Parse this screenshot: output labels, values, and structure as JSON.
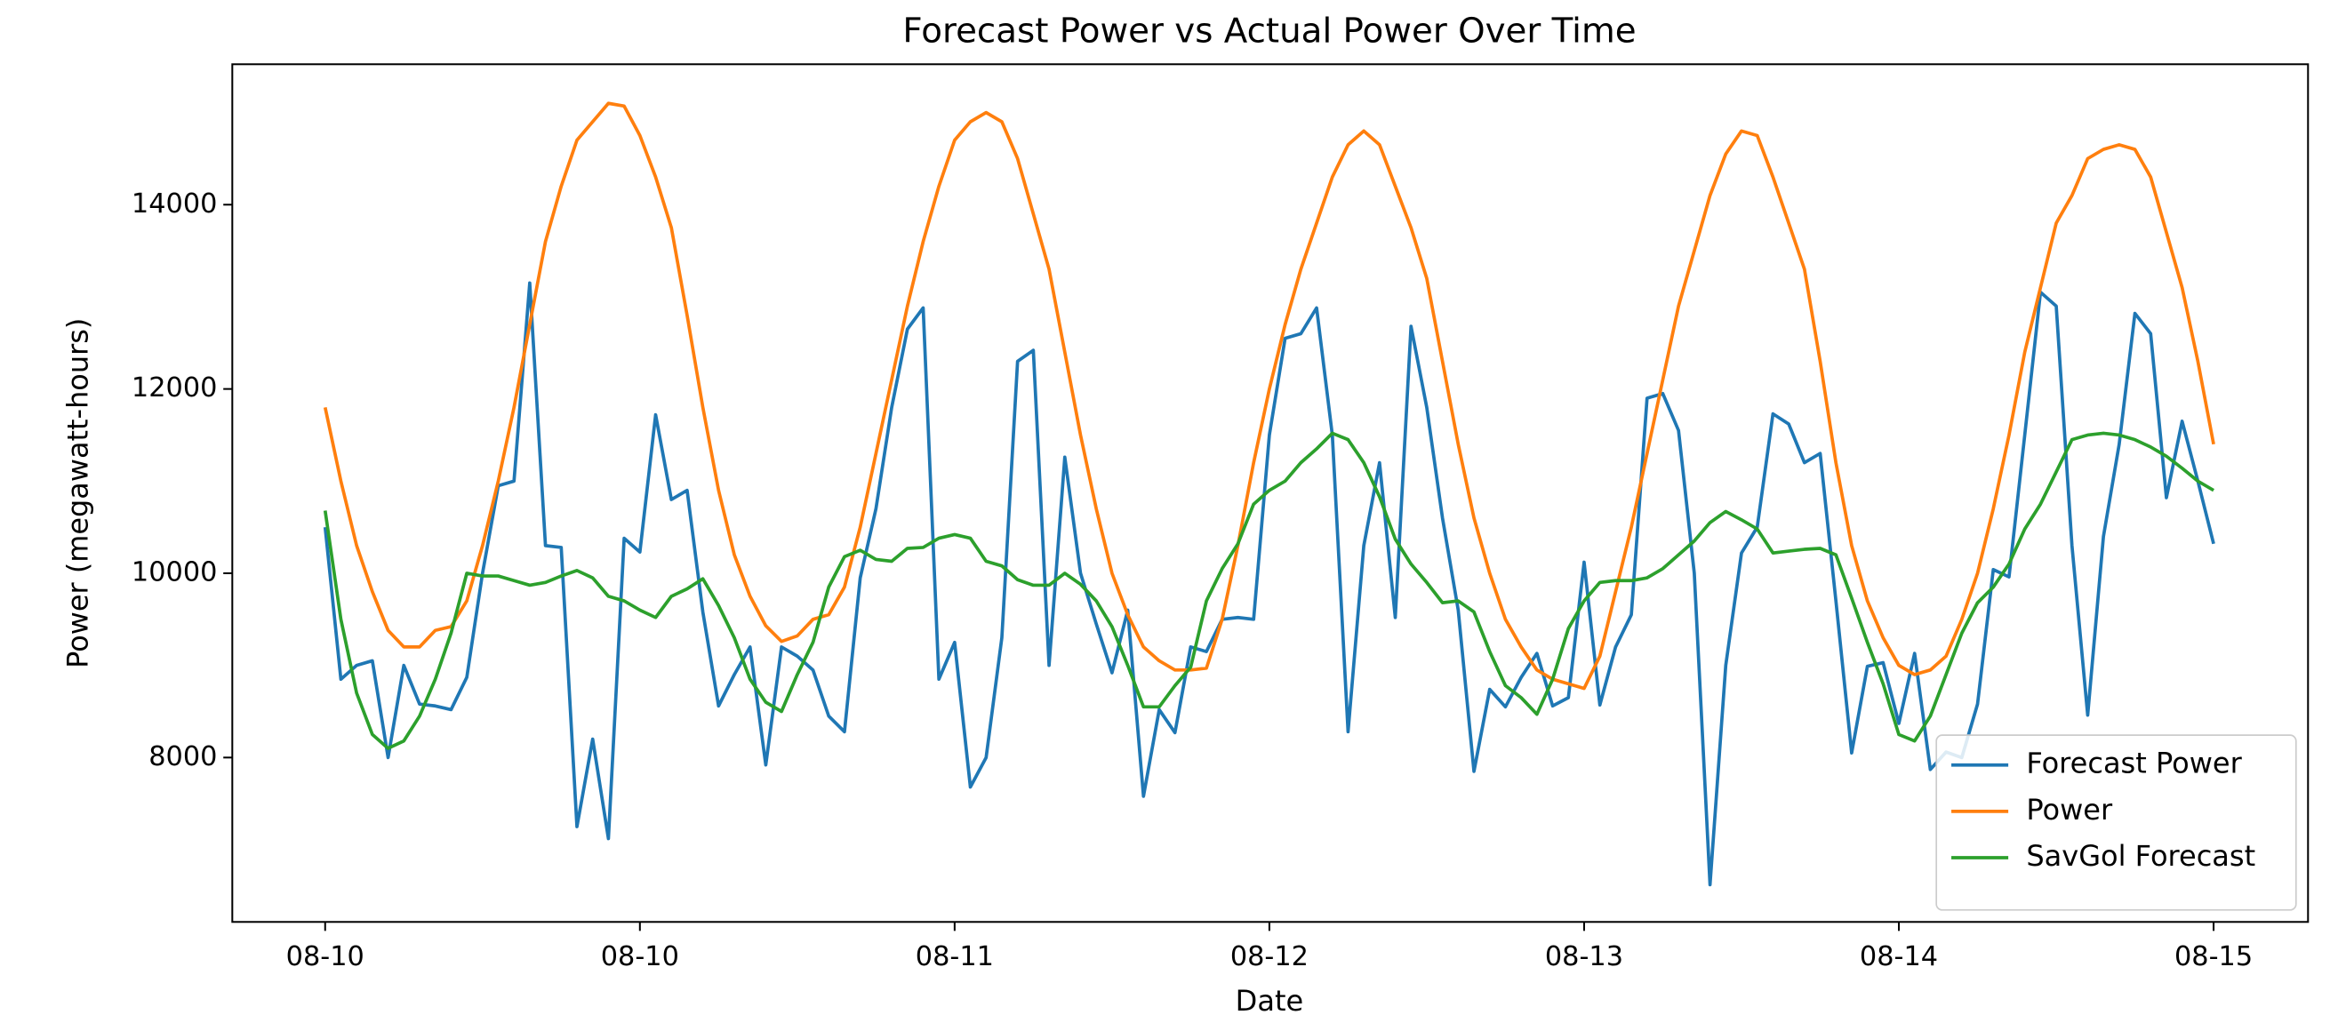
{
  "chart_data": {
    "type": "line",
    "title": "Forecast Power vs Actual Power Over Time",
    "xlabel": "Date",
    "ylabel": "Power (megawatt-hours)",
    "xlim": [
      -5.9,
      126
    ],
    "ylim": [
      6216,
      15524
    ],
    "xticks": [
      {
        "value": 0,
        "label": "08-10"
      },
      {
        "value": 20,
        "label": "08-10"
      },
      {
        "value": 40,
        "label": "08-11"
      },
      {
        "value": 60,
        "label": "08-12"
      },
      {
        "value": 80,
        "label": "08-13"
      },
      {
        "value": 100,
        "label": "08-14"
      },
      {
        "value": 120,
        "label": "08-15"
      }
    ],
    "yticks": [
      8000,
      10000,
      12000,
      14000
    ],
    "grid": false,
    "legend": "lower right",
    "series": [
      {
        "name": "Forecast Power",
        "color": "#1f77b4",
        "values": [
          10500,
          8850,
          9000,
          9050,
          8000,
          9000,
          8580,
          8560,
          8520,
          8870,
          10000,
          10950,
          11000,
          13150,
          10300,
          10280,
          7250,
          8200,
          7120,
          10380,
          10230,
          11720,
          10800,
          10900,
          9580,
          8560,
          8900,
          9200,
          7920,
          9200,
          9100,
          8950,
          8450,
          8280,
          9950,
          10700,
          11800,
          12650,
          12880,
          8850,
          9250,
          7680,
          8000,
          9300,
          12300,
          12420,
          9000,
          11260,
          10000,
          9450,
          8920,
          9600,
          7580,
          8520,
          8270,
          9200,
          9150,
          9500,
          9520,
          9500,
          11500,
          12550,
          12600,
          12880,
          11500,
          8280,
          10300,
          11200,
          9520,
          12680,
          11800,
          10600,
          9600,
          7850,
          8740,
          8550,
          8870,
          9130,
          8560,
          8650,
          10120,
          8570,
          9200,
          9550,
          11900,
          11950,
          11550,
          10000,
          6620,
          9000,
          10220,
          10500,
          11730,
          11620,
          11200,
          11300,
          9700,
          8050,
          8990,
          9030,
          8370,
          9130,
          7870,
          8060,
          8000,
          8580,
          10040,
          9960,
          11500,
          13050,
          12900,
          10300,
          8460,
          10400,
          11400,
          12820,
          12600,
          10820,
          11650,
          11000,
          10320
        ]
      },
      {
        "name": "Power",
        "color": "#ff7f0e",
        "values": [
          11800,
          11000,
          10300,
          9800,
          9380,
          9200,
          9200,
          9380,
          9420,
          9700,
          10300,
          11000,
          11800,
          12700,
          13600,
          14200,
          14700,
          14900,
          15100,
          15070,
          14750,
          14300,
          13750,
          12800,
          11800,
          10900,
          10200,
          9750,
          9430,
          9260,
          9320,
          9500,
          9550,
          9850,
          10500,
          11300,
          12100,
          12900,
          13600,
          14200,
          14700,
          14900,
          15000,
          14900,
          14500,
          13900,
          13300,
          12400,
          11500,
          10700,
          10000,
          9550,
          9200,
          9050,
          8950,
          8950,
          8970,
          9500,
          10300,
          11200,
          12000,
          12700,
          13300,
          13800,
          14300,
          14650,
          14800,
          14650,
          14200,
          13750,
          13200,
          12300,
          11400,
          10600,
          10000,
          9500,
          9200,
          8950,
          8850,
          8800,
          8750,
          9100,
          9800,
          10500,
          11300,
          12100,
          12900,
          13500,
          14100,
          14550,
          14800,
          14750,
          14300,
          13800,
          13300,
          12300,
          11200,
          10300,
          9700,
          9300,
          9000,
          8900,
          8950,
          9100,
          9500,
          10000,
          10700,
          11500,
          12400,
          13100,
          13800,
          14100,
          14500,
          14600,
          14650,
          14600,
          14300,
          13700,
          13100,
          12300,
          11400
        ]
      },
      {
        "name": "SavGol Forecast",
        "color": "#2ca02c",
        "values": [
          10680,
          9500,
          8700,
          8250,
          8100,
          8180,
          8450,
          8850,
          9350,
          10000,
          9970,
          9970,
          9920,
          9870,
          9900,
          9970,
          10030,
          9950,
          9750,
          9700,
          9600,
          9520,
          9750,
          9830,
          9940,
          9650,
          9300,
          8850,
          8600,
          8500,
          8900,
          9250,
          9850,
          10180,
          10250,
          10150,
          10130,
          10270,
          10280,
          10380,
          10420,
          10380,
          10130,
          10080,
          9930,
          9870,
          9870,
          10000,
          9880,
          9700,
          9420,
          9000,
          8550,
          8550,
          8780,
          8980,
          9700,
          10050,
          10320,
          10750,
          10900,
          11000,
          11200,
          11350,
          11520,
          11450,
          11200,
          10830,
          10370,
          10100,
          9900,
          9680,
          9700,
          9580,
          9150,
          8780,
          8650,
          8470,
          8850,
          9400,
          9700,
          9900,
          9920,
          9920,
          9950,
          10050,
          10200,
          10350,
          10550,
          10670,
          10580,
          10480,
          10220,
          10240,
          10260,
          10270,
          10200,
          9730,
          9250,
          8800,
          8250,
          8180,
          8450,
          8900,
          9350,
          9680,
          9850,
          10100,
          10480,
          10750,
          11100,
          11450,
          11500,
          11520,
          11500,
          11450,
          11370,
          11270,
          11140,
          11000,
          10900
        ]
      }
    ]
  }
}
